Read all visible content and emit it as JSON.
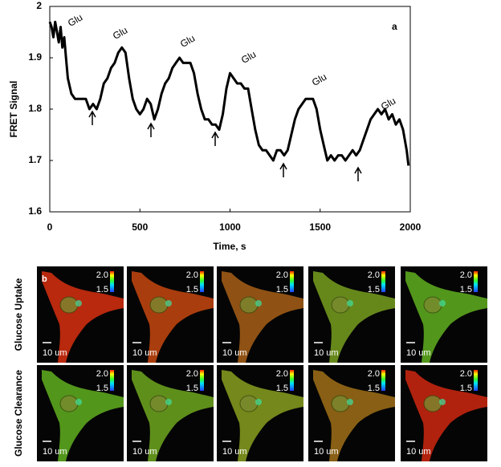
{
  "chart_data": {
    "type": "line",
    "x_label": "Time, s",
    "y_label": "FRET Signal",
    "panel_label": "a",
    "color": "#000000",
    "xlim": [
      0,
      2000
    ],
    "xticks": [
      0,
      500,
      1000,
      1500,
      2000
    ],
    "ylim": [
      1.6,
      2
    ],
    "yticks": [
      1.6,
      1.7,
      1.8,
      1.9,
      2
    ],
    "annotations": [
      "Glu",
      "Glu",
      "Glu",
      "Glu",
      "Glu",
      "Glu"
    ],
    "x": [
      0,
      10,
      20,
      30,
      40,
      50,
      60,
      70,
      80,
      90,
      100,
      120,
      140,
      160,
      180,
      200,
      220,
      240,
      260,
      280,
      300,
      320,
      340,
      360,
      380,
      400,
      420,
      440,
      460,
      480,
      500,
      520,
      540,
      560,
      580,
      600,
      620,
      640,
      660,
      680,
      700,
      720,
      740,
      760,
      780,
      800,
      820,
      840,
      860,
      880,
      900,
      920,
      940,
      960,
      980,
      1000,
      1020,
      1040,
      1060,
      1080,
      1100,
      1120,
      1140,
      1160,
      1180,
      1200,
      1220,
      1240,
      1260,
      1280,
      1300,
      1320,
      1340,
      1360,
      1380,
      1400,
      1420,
      1440,
      1460,
      1480,
      1500,
      1520,
      1540,
      1560,
      1580,
      1600,
      1620,
      1640,
      1660,
      1680,
      1700,
      1720,
      1740,
      1760,
      1780,
      1800,
      1820,
      1840,
      1860,
      1880,
      1900,
      1920,
      1940,
      1960,
      1980,
      1990
    ],
    "values": [
      1.97,
      1.96,
      1.94,
      1.97,
      1.95,
      1.93,
      1.96,
      1.92,
      1.94,
      1.9,
      1.86,
      1.83,
      1.82,
      1.82,
      1.82,
      1.82,
      1.8,
      1.81,
      1.8,
      1.82,
      1.85,
      1.86,
      1.88,
      1.89,
      1.91,
      1.92,
      1.91,
      1.86,
      1.82,
      1.8,
      1.79,
      1.8,
      1.82,
      1.81,
      1.78,
      1.8,
      1.83,
      1.85,
      1.86,
      1.88,
      1.89,
      1.9,
      1.89,
      1.89,
      1.89,
      1.87,
      1.83,
      1.8,
      1.78,
      1.78,
      1.77,
      1.77,
      1.76,
      1.79,
      1.84,
      1.87,
      1.86,
      1.85,
      1.85,
      1.84,
      1.84,
      1.8,
      1.76,
      1.73,
      1.72,
      1.72,
      1.71,
      1.7,
      1.72,
      1.72,
      1.71,
      1.72,
      1.75,
      1.78,
      1.8,
      1.81,
      1.82,
      1.82,
      1.82,
      1.8,
      1.76,
      1.73,
      1.7,
      1.71,
      1.7,
      1.71,
      1.71,
      1.7,
      1.71,
      1.72,
      1.71,
      1.72,
      1.74,
      1.76,
      1.78,
      1.79,
      1.8,
      1.79,
      1.8,
      1.78,
      1.79,
      1.77,
      1.78,
      1.76,
      1.72,
      1.69
    ]
  },
  "panel_b": {
    "label": "b",
    "rows": [
      {
        "label": "Glucose Uptake",
        "images": [
          {
            "scale_max": "2.0",
            "scale_min": "1.5",
            "scale_bar": "10 um"
          },
          {
            "scale_max": "2.0",
            "scale_min": "1.5",
            "scale_bar": "10 um"
          },
          {
            "scale_max": "2.0",
            "scale_min": "1.5",
            "scale_bar": "10 um"
          },
          {
            "scale_max": "2.0",
            "scale_min": "1.5",
            "scale_bar": "10 um"
          },
          {
            "scale_max": "2.0",
            "scale_min": "1.5",
            "scale_bar": "10 um"
          }
        ]
      },
      {
        "label": "Glucose Clearance",
        "images": [
          {
            "scale_max": "2.0",
            "scale_min": "1.5",
            "scale_bar": "10 um"
          },
          {
            "scale_max": "2.0",
            "scale_min": "1.5",
            "scale_bar": "10 um"
          },
          {
            "scale_max": "2.0",
            "scale_min": "1.5",
            "scale_bar": "10 um"
          },
          {
            "scale_max": "2.0",
            "scale_min": "1.5",
            "scale_bar": "10 um"
          },
          {
            "scale_max": "2.0",
            "scale_min": "1.5",
            "scale_bar": "10 um"
          }
        ]
      }
    ]
  }
}
